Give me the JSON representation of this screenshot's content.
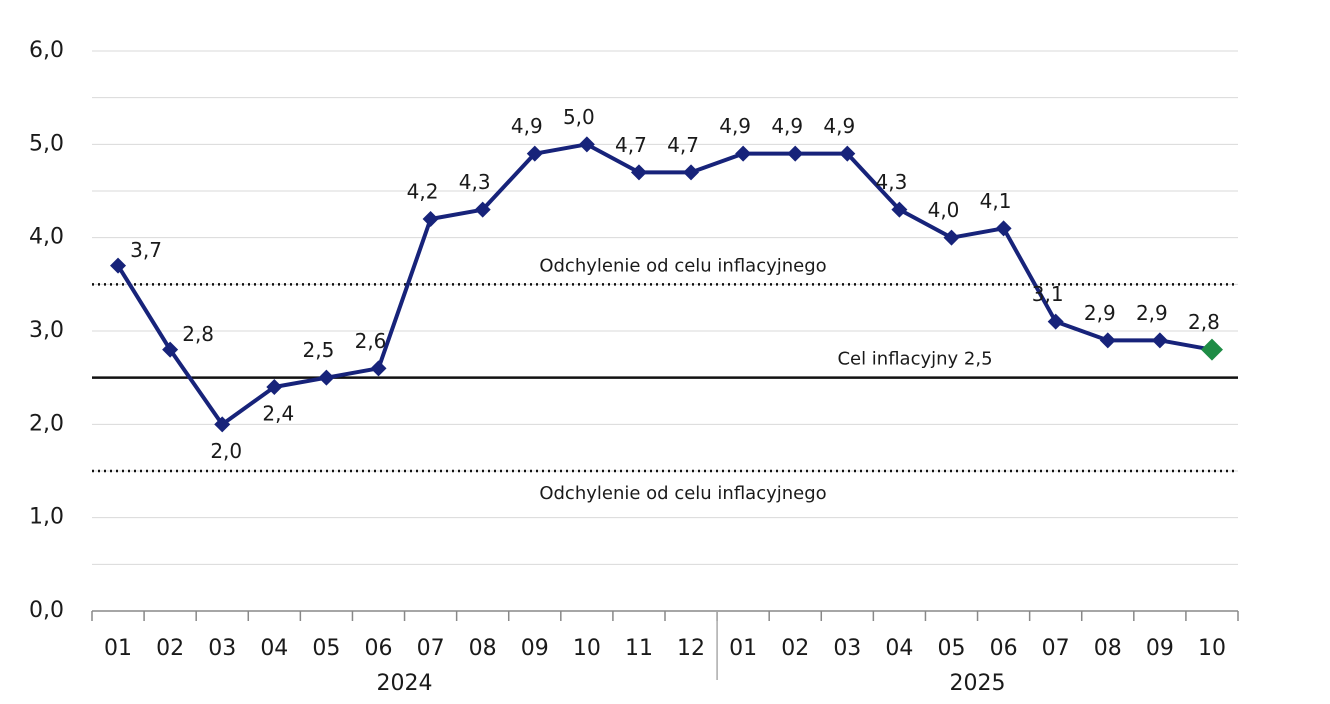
{
  "chart_data": {
    "type": "line",
    "categories": [
      "01",
      "02",
      "03",
      "04",
      "05",
      "06",
      "07",
      "08",
      "09",
      "10",
      "11",
      "12",
      "01",
      "02",
      "03",
      "04",
      "05",
      "06",
      "07",
      "08",
      "09",
      "10"
    ],
    "groups": [
      {
        "label": "2024",
        "count": 12
      },
      {
        "label": "2025",
        "count": 10
      }
    ],
    "series": [
      {
        "color": "#17237a",
        "last_marker_color": "#1e8c45",
        "values": [
          3.7,
          2.8,
          2.0,
          2.4,
          2.5,
          2.6,
          4.2,
          4.3,
          4.9,
          5.0,
          4.7,
          4.7,
          4.9,
          4.9,
          4.9,
          4.3,
          4.0,
          4.1,
          3.1,
          2.9,
          2.9,
          2.8
        ],
        "value_labels": [
          "3,7",
          "2,8",
          "2,0",
          "2,4",
          "2,5",
          "2,6",
          "4,2",
          "4,3",
          "4,9",
          "5,0",
          "4,7",
          "4,7",
          "4,9",
          "4,9",
          "4,9",
          "4,3",
          "4,0",
          "4,1",
          "3,1",
          "2,9",
          "2,9",
          "2,8"
        ]
      }
    ],
    "ylim": [
      0,
      6
    ],
    "yticks": [
      {
        "value": 0,
        "label": "0,0"
      },
      {
        "value": 1,
        "label": "1,0"
      },
      {
        "value": 2,
        "label": "2,0"
      },
      {
        "value": 3,
        "label": "3,0"
      },
      {
        "value": 4,
        "label": "4,0"
      },
      {
        "value": 5,
        "label": "5,0"
      },
      {
        "value": 6,
        "label": "6,0"
      }
    ],
    "minor_yticks": [
      0.5,
      1.5,
      2.5,
      3.5,
      4.5,
      5.5
    ],
    "grid": true,
    "reference_lines": [
      {
        "value": 3.5,
        "label": "Odchylenie od celu inflacyjnego",
        "style": "dotted"
      },
      {
        "value": 2.5,
        "label": "Cel inflacyjny 2,5",
        "style": "solid"
      },
      {
        "value": 1.5,
        "label": "Odchylenie od celu inflacyjnego",
        "style": "dotted"
      }
    ]
  }
}
